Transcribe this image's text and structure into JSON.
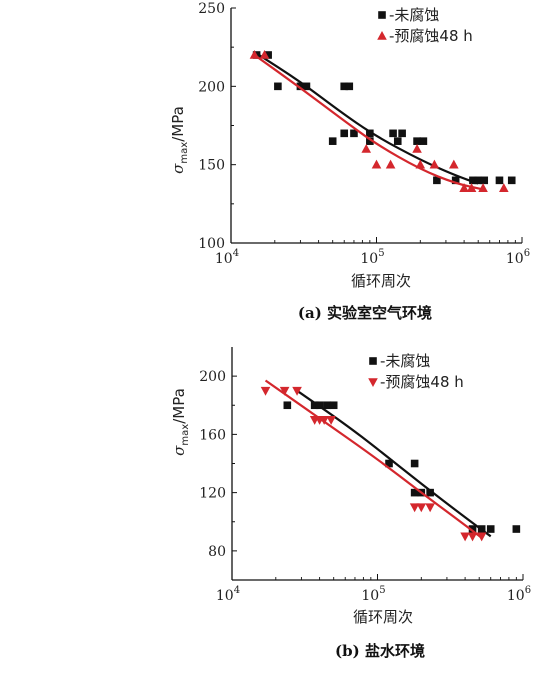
{
  "colors": {
    "black_series": "#111111",
    "red_series": "#d4272d",
    "axis": "#111111"
  },
  "chart_data": [
    {
      "type": "scatter",
      "caption": "(a) 实验室空气环境",
      "xlabel": "循环周次",
      "ylabel_main": "σ",
      "ylabel_sub": "max",
      "ylabel_unit": "/MPa",
      "xscale": "log",
      "xlim": [
        10000,
        1000000
      ],
      "ylim": [
        100,
        250
      ],
      "xticks": [
        {
          "value": 10000,
          "base": "10",
          "exp": "4"
        },
        {
          "value": 100000,
          "base": "10",
          "exp": "5"
        },
        {
          "value": 1000000,
          "base": "10",
          "exp": "6"
        }
      ],
      "yticks": [
        100,
        150,
        200,
        250
      ],
      "legend_position": "top-right",
      "series": [
        {
          "name": "-未腐蚀",
          "marker": "square",
          "color": "#111111",
          "points": [
            [
              15000,
              220
            ],
            [
              18000,
              220
            ],
            [
              21000,
              200
            ],
            [
              30000,
              200
            ],
            [
              33000,
              200
            ],
            [
              60000,
              200
            ],
            [
              65000,
              200
            ],
            [
              50000,
              165
            ],
            [
              60000,
              170
            ],
            [
              70000,
              170
            ],
            [
              90000,
              170
            ],
            [
              90000,
              165
            ],
            [
              130000,
              170
            ],
            [
              150000,
              170
            ],
            [
              140000,
              165
            ],
            [
              190000,
              165
            ],
            [
              210000,
              165
            ],
            [
              260000,
              140
            ],
            [
              350000,
              140
            ],
            [
              460000,
              140
            ],
            [
              500000,
              140
            ],
            [
              550000,
              140
            ],
            [
              700000,
              140
            ],
            [
              850000,
              140
            ]
          ],
          "fit": [
            [
              15000,
              221
            ],
            [
              30000,
              203
            ],
            [
              60000,
              182
            ],
            [
              100000,
              168
            ],
            [
              200000,
              153
            ],
            [
              350000,
              143
            ],
            [
              500000,
              138
            ]
          ]
        },
        {
          "name": "-预腐蚀48 h",
          "marker": "triangle-up",
          "color": "#d4272d",
          "points": [
            [
              14500,
              220
            ],
            [
              17000,
              220
            ],
            [
              85000,
              160
            ],
            [
              100000,
              150
            ],
            [
              125000,
              150
            ],
            [
              190000,
              160
            ],
            [
              200000,
              150
            ],
            [
              250000,
              150
            ],
            [
              340000,
              150
            ],
            [
              400000,
              135
            ],
            [
              450000,
              135
            ],
            [
              540000,
              135
            ],
            [
              750000,
              135
            ]
          ],
          "fit": [
            [
              14500,
              220
            ],
            [
              30000,
              199
            ],
            [
              60000,
              178
            ],
            [
              100000,
              163
            ],
            [
              200000,
              147
            ],
            [
              350000,
              138
            ],
            [
              550000,
              134
            ]
          ]
        }
      ]
    },
    {
      "type": "scatter",
      "caption": "(b) 盐水环境",
      "xlabel": "循环周次",
      "ylabel_main": "σ",
      "ylabel_sub": "max",
      "ylabel_unit": "/MPa",
      "xscale": "log",
      "xlim": [
        10000,
        1000000
      ],
      "ylim": [
        60,
        220
      ],
      "xticks": [
        {
          "value": 10000,
          "base": "10",
          "exp": "4"
        },
        {
          "value": 100000,
          "base": "10",
          "exp": "5"
        },
        {
          "value": 1000000,
          "base": "10",
          "exp": "6"
        }
      ],
      "yticks": [
        80,
        120,
        160,
        200
      ],
      "legend_position": "top-right",
      "series": [
        {
          "name": "-未腐蚀",
          "marker": "square",
          "color": "#111111",
          "points": [
            [
              24000,
              180
            ],
            [
              37000,
              180
            ],
            [
              40000,
              180
            ],
            [
              45000,
              180
            ],
            [
              50000,
              180
            ],
            [
              120000,
              140
            ],
            [
              180000,
              140
            ],
            [
              180000,
              120
            ],
            [
              200000,
              120
            ],
            [
              230000,
              120
            ],
            [
              450000,
              95
            ],
            [
              520000,
              95
            ],
            [
              600000,
              95
            ],
            [
              900000,
              95
            ]
          ],
          "fit": [
            [
              28000,
              190
            ],
            [
              60000,
              167
            ],
            [
              100000,
              150
            ],
            [
              200000,
              126
            ],
            [
              400000,
              103
            ],
            [
              600000,
              90
            ]
          ]
        },
        {
          "name": "-预腐蚀48 h",
          "marker": "triangle-down",
          "color": "#d4272d",
          "points": [
            [
              17000,
              190
            ],
            [
              23000,
              190
            ],
            [
              28000,
              190
            ],
            [
              37000,
              170
            ],
            [
              40000,
              170
            ],
            [
              43000,
              170
            ],
            [
              48000,
              170
            ],
            [
              180000,
              110
            ],
            [
              200000,
              110
            ],
            [
              230000,
              110
            ],
            [
              400000,
              90
            ],
            [
              450000,
              90
            ],
            [
              520000,
              90
            ]
          ],
          "fit": [
            [
              17000,
              197
            ],
            [
              40000,
              171
            ],
            [
              100000,
              143
            ],
            [
              200000,
              120
            ],
            [
              350000,
              102
            ],
            [
              520000,
              89
            ]
          ]
        }
      ]
    }
  ]
}
